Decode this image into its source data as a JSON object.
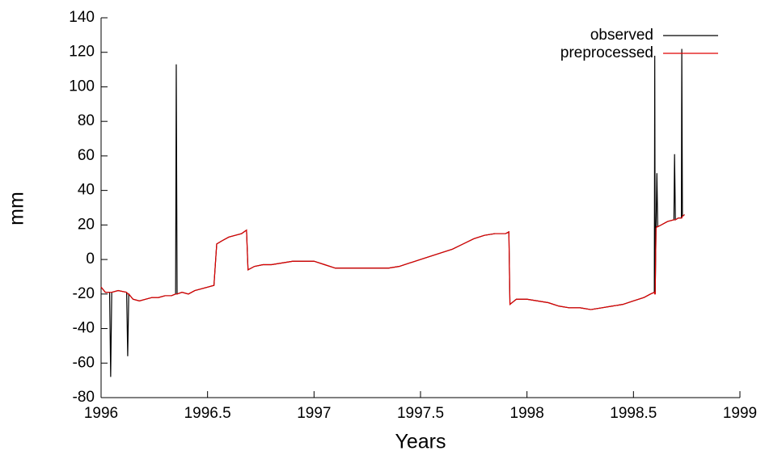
{
  "chart_data": {
    "type": "line",
    "xlabel": "Years",
    "ylabel": "mm",
    "xlim": [
      1996,
      1999
    ],
    "xticks": [
      1996,
      1996.5,
      1997,
      1997.5,
      1998,
      1998.5,
      1999
    ],
    "ylim": [
      -80,
      140
    ],
    "yticks": [
      -80,
      -60,
      -40,
      -20,
      0,
      20,
      40,
      60,
      80,
      100,
      120,
      140
    ],
    "grid": false,
    "legend": "upper right",
    "x": [
      1996,
      1996.02,
      1996.04,
      1996.045,
      1996.05,
      1996.08,
      1996.12,
      1996.125,
      1996.13,
      1996.15,
      1996.18,
      1996.21,
      1996.24,
      1996.27,
      1996.3,
      1996.33,
      1996.35,
      1996.353,
      1996.357,
      1996.38,
      1996.41,
      1996.44,
      1996.47,
      1996.5,
      1996.53,
      1996.543,
      1996.57,
      1996.6,
      1996.63,
      1996.66,
      1996.683,
      1996.69,
      1996.72,
      1996.76,
      1996.8,
      1996.85,
      1996.9,
      1996.95,
      1997,
      1997.05,
      1997.1,
      1997.15,
      1997.2,
      1997.25,
      1997.3,
      1997.35,
      1997.4,
      1997.45,
      1997.5,
      1997.55,
      1997.6,
      1997.65,
      1997.7,
      1997.75,
      1997.8,
      1997.85,
      1997.9,
      1997.915,
      1997.92,
      1997.95,
      1998,
      1998.05,
      1998.1,
      1998.15,
      1998.2,
      1998.25,
      1998.3,
      1998.35,
      1998.4,
      1998.45,
      1998.5,
      1998.55,
      1998.58,
      1998.598,
      1998.6,
      1998.602,
      1998.606,
      1998.61,
      1998.614,
      1998.63,
      1998.66,
      1998.69,
      1998.693,
      1998.697,
      1998.71,
      1998.725,
      1998.727,
      1998.73,
      1998.74
    ],
    "series": [
      {
        "name": "observed",
        "color": "#000000",
        "values": [
          -16,
          -19,
          -19,
          -68,
          -19,
          -18,
          -19,
          -56,
          -20,
          -23,
          -24,
          -23,
          -22,
          -22,
          -21,
          -21,
          -20,
          113,
          -20,
          -19,
          -20,
          -18,
          -17,
          -16,
          -15,
          9,
          11,
          13,
          14,
          15,
          17,
          -6,
          -4,
          -3,
          -3,
          -2,
          -1,
          -1,
          -1,
          -3,
          -5,
          -5,
          -5,
          -5,
          -5,
          -5,
          -4,
          -2,
          0,
          2,
          4,
          6,
          9,
          12,
          14,
          15,
          15,
          16,
          -26,
          -23,
          -23,
          -24,
          -25,
          -27,
          -28,
          -28,
          -29,
          -28,
          -27,
          -26,
          -24,
          -22,
          -20,
          -19,
          118,
          -20,
          18,
          50,
          19,
          20,
          22,
          23,
          61,
          23,
          24,
          24,
          122,
          25,
          26
        ]
      },
      {
        "name": "preprocessed",
        "color": "#e00000",
        "values": [
          -16,
          -19,
          -19,
          -19,
          -19,
          -18,
          -19,
          -20,
          -20,
          -23,
          -24,
          -23,
          -22,
          -22,
          -21,
          -21,
          -20,
          -20,
          -20,
          -19,
          -20,
          -18,
          -17,
          -16,
          -15,
          9,
          11,
          13,
          14,
          15,
          17,
          -6,
          -4,
          -3,
          -3,
          -2,
          -1,
          -1,
          -1,
          -3,
          -5,
          -5,
          -5,
          -5,
          -5,
          -5,
          -4,
          -2,
          0,
          2,
          4,
          6,
          9,
          12,
          14,
          15,
          15,
          16,
          -26,
          -23,
          -23,
          -24,
          -25,
          -27,
          -28,
          -28,
          -29,
          -28,
          -27,
          -26,
          -24,
          -22,
          -20,
          -19,
          -20,
          -20,
          18,
          19,
          19,
          20,
          22,
          23,
          23,
          23,
          24,
          24,
          24,
          25,
          26
        ]
      }
    ]
  }
}
